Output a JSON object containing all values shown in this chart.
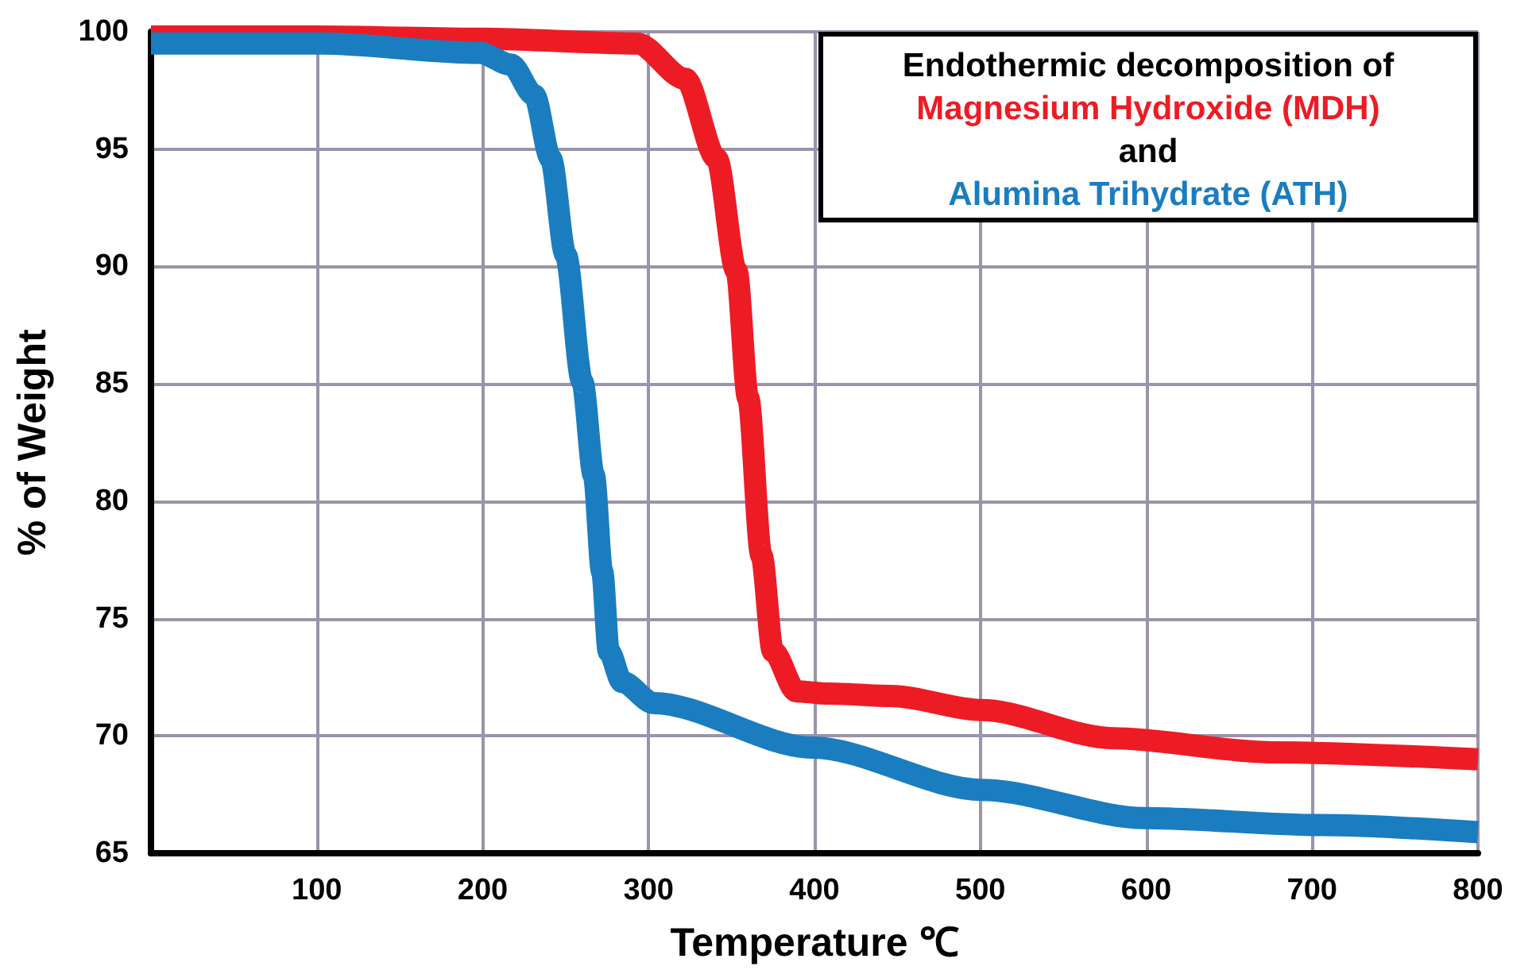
{
  "chart_data": {
    "type": "line",
    "xlabel": "Temperature ℃",
    "ylabel": "% of Weight",
    "legend_title": "Endothermic decomposition of",
    "annotations": [
      "and"
    ],
    "legend": "top right",
    "grid": true,
    "marker": "none",
    "line_style": "solid",
    "xlim": [
      0,
      800
    ],
    "xticks": [
      100,
      200,
      300,
      400,
      500,
      600,
      700,
      800
    ],
    "ylim": [
      65,
      100
    ],
    "yticks": [
      65,
      70,
      75,
      80,
      85,
      90,
      95,
      100
    ],
    "series": [
      {
        "name": "Magnesium Hydroxide (MDH)",
        "color": "#ed1c24",
        "x": [
          0,
          100,
          200,
          293,
          322,
          341,
          353,
          360,
          368,
          375,
          389,
          408,
          446,
          501,
          580,
          676,
          800
        ],
        "values": [
          99.8,
          99.8,
          99.7,
          99.5,
          98,
          94.6,
          89.8,
          84.4,
          77.7,
          73.6,
          71.9,
          71.8,
          71.7,
          71.1,
          69.9,
          69.3,
          69
        ]
      },
      {
        "name": "Alumina Trihydrate (ATH)",
        "color": "#1a7dc0",
        "x": [
          0,
          102,
          198,
          217,
          231,
          241,
          250,
          260,
          267,
          272,
          276,
          284,
          303,
          399,
          501,
          599,
          705,
          800
        ],
        "values": [
          99.5,
          99.5,
          99.1,
          98.6,
          97.3,
          94.6,
          90.5,
          85.1,
          81.1,
          77,
          73.6,
          72.3,
          71.4,
          69.5,
          67.7,
          66.5,
          66.2,
          65.9
        ]
      }
    ]
  }
}
